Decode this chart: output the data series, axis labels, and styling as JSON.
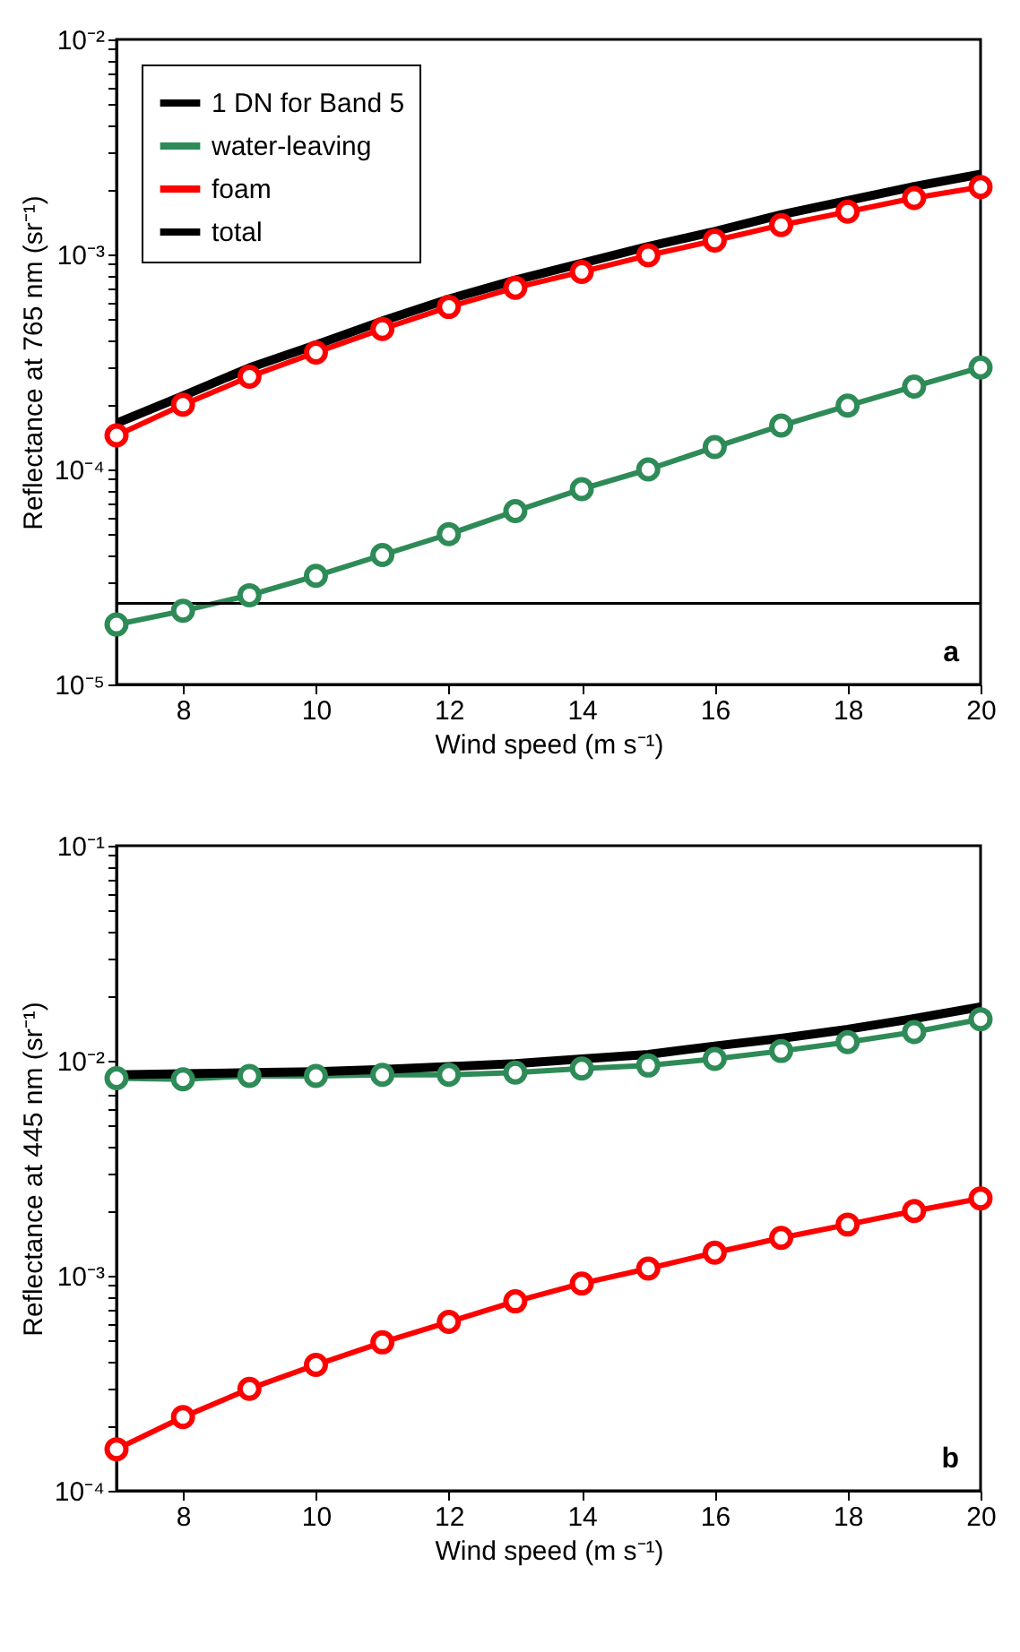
{
  "chart_data": [
    {
      "type": "line",
      "xlabel": "Wind speed (m s⁻¹)",
      "ylabel": "Reflectance at 765 nm (sr⁻¹)",
      "log": "y",
      "legend": "top left",
      "grid": false,
      "x": [
        7,
        8,
        9,
        10,
        11,
        12,
        13,
        14,
        15,
        16,
        17,
        18,
        19,
        20
      ],
      "xlim": [
        7,
        20
      ],
      "xticks": [
        8,
        10,
        12,
        14,
        16,
        18,
        20
      ],
      "ylim": [
        1e-05,
        0.01
      ],
      "yticks": [
        {
          "value": 1e-05,
          "label": "10⁻⁵"
        },
        {
          "value": 2e-05,
          "label": null
        },
        {
          "value": 3e-05,
          "label": null
        },
        {
          "value": 4e-05,
          "label": null
        },
        {
          "value": 5e-05,
          "label": null
        },
        {
          "value": 6e-05,
          "label": null
        },
        {
          "value": 7e-05,
          "label": null
        },
        {
          "value": 8e-05,
          "label": null
        },
        {
          "value": 9e-05,
          "label": null
        },
        {
          "value": 0.0001,
          "label": "10⁻⁴"
        },
        {
          "value": 0.0002,
          "label": null
        },
        {
          "value": 0.0003,
          "label": null
        },
        {
          "value": 0.0004,
          "label": null
        },
        {
          "value": 0.0005,
          "label": null
        },
        {
          "value": 0.0006,
          "label": null
        },
        {
          "value": 0.0007,
          "label": null
        },
        {
          "value": 0.0008,
          "label": null
        },
        {
          "value": 0.0009,
          "label": null
        },
        {
          "value": 0.001,
          "label": "10⁻³"
        },
        {
          "value": 0.002,
          "label": null
        },
        {
          "value": 0.003,
          "label": null
        },
        {
          "value": 0.004,
          "label": null
        },
        {
          "value": 0.005,
          "label": null
        },
        {
          "value": 0.006,
          "label": null
        },
        {
          "value": 0.007,
          "label": null
        },
        {
          "value": 0.008,
          "label": null
        },
        {
          "value": 0.009,
          "label": null
        },
        {
          "value": 0.01,
          "label": "10⁻²"
        }
      ],
      "ref_lines": [
        {
          "axis": "y",
          "value": 2.38e-05,
          "label": "1 DN for Band 5",
          "color": "#000000"
        }
      ],
      "series": [
        {
          "name": "water-leaving",
          "color": "#2e8b57",
          "marker": "circle",
          "values": [
            1.9e-05,
            2.2e-05,
            2.6e-05,
            3.2e-05,
            4e-05,
            5e-05,
            6.4e-05,
            8.1e-05,
            0.0001,
            0.000127,
            0.00016,
            0.000198,
            0.000243,
            0.000298
          ]
        },
        {
          "name": "foam",
          "color": "#ff0000",
          "marker": "circle",
          "values": [
            0.000144,
            0.0002,
            0.00027,
            0.00035,
            0.00045,
            0.00057,
            0.0007,
            0.00083,
            0.00099,
            0.00116,
            0.00137,
            0.00158,
            0.00183,
            0.00206
          ]
        },
        {
          "name": "total",
          "color": "#000000",
          "marker": "none",
          "values": [
            0.000164,
            0.00022,
            0.000297,
            0.00038,
            0.00049,
            0.00062,
            0.00076,
            0.00091,
            0.00109,
            0.00128,
            0.00153,
            0.00178,
            0.00207,
            0.00236
          ]
        }
      ],
      "annotations": [
        "a"
      ]
    },
    {
      "type": "line",
      "xlabel": "Wind speed (m s⁻¹)",
      "ylabel": "Reflectance at 445 nm (sr⁻¹)",
      "log": "y",
      "grid": false,
      "x": [
        7,
        8,
        9,
        10,
        11,
        12,
        13,
        14,
        15,
        16,
        17,
        18,
        19,
        20
      ],
      "xlim": [
        7,
        20
      ],
      "xticks": [
        8,
        10,
        12,
        14,
        16,
        18,
        20
      ],
      "ylim": [
        0.0001,
        0.1
      ],
      "yticks": [
        {
          "value": 0.0001,
          "label": "10⁻⁴"
        },
        {
          "value": 0.0002,
          "label": null
        },
        {
          "value": 0.0003,
          "label": null
        },
        {
          "value": 0.0004,
          "label": null
        },
        {
          "value": 0.0005,
          "label": null
        },
        {
          "value": 0.0006,
          "label": null
        },
        {
          "value": 0.0007,
          "label": null
        },
        {
          "value": 0.0008,
          "label": null
        },
        {
          "value": 0.0009,
          "label": null
        },
        {
          "value": 0.001,
          "label": "10⁻³"
        },
        {
          "value": 0.002,
          "label": null
        },
        {
          "value": 0.003,
          "label": null
        },
        {
          "value": 0.004,
          "label": null
        },
        {
          "value": 0.005,
          "label": null
        },
        {
          "value": 0.006,
          "label": null
        },
        {
          "value": 0.007,
          "label": null
        },
        {
          "value": 0.008,
          "label": null
        },
        {
          "value": 0.009,
          "label": null
        },
        {
          "value": 0.01,
          "label": "10⁻²"
        },
        {
          "value": 0.02,
          "label": null
        },
        {
          "value": 0.03,
          "label": null
        },
        {
          "value": 0.04,
          "label": null
        },
        {
          "value": 0.05,
          "label": null
        },
        {
          "value": 0.06,
          "label": null
        },
        {
          "value": 0.07,
          "label": null
        },
        {
          "value": 0.08,
          "label": null
        },
        {
          "value": 0.09,
          "label": null
        },
        {
          "value": 0.1,
          "label": "10⁻¹"
        }
      ],
      "series": [
        {
          "color": "#2e8b57",
          "marker": "circle",
          "values": [
            0.0083,
            0.0082,
            0.0085,
            0.0085,
            0.0086,
            0.0086,
            0.0088,
            0.0092,
            0.0095,
            0.0102,
            0.0111,
            0.0122,
            0.0136,
            0.0156
          ]
        },
        {
          "color": "#ff0000",
          "marker": "circle",
          "values": [
            0.000156,
            0.00022,
            0.000298,
            0.000385,
            0.00049,
            0.00061,
            0.00076,
            0.00092,
            0.00108,
            0.00128,
            0.0015,
            0.00173,
            0.002,
            0.00229
          ]
        },
        {
          "color": "#000000",
          "marker": "none",
          "values": [
            0.0086,
            0.0087,
            0.0088,
            0.0089,
            0.0091,
            0.0094,
            0.0097,
            0.0102,
            0.0107,
            0.0117,
            0.0127,
            0.014,
            0.0157,
            0.0178
          ]
        }
      ],
      "annotations": [
        "b"
      ]
    }
  ]
}
